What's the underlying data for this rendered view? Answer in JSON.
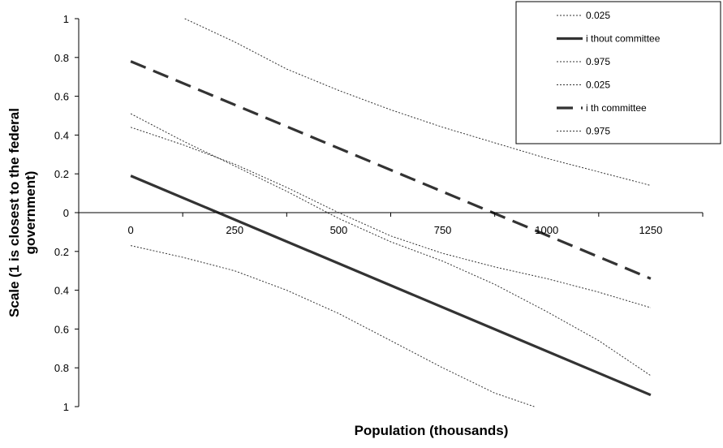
{
  "chart_data": {
    "type": "line",
    "title": "",
    "xlabel": "Population (thousands)",
    "ylabel_lines": [
      "Scale (1 is closest to the federal",
      "government)"
    ],
    "xlim": [
      -125,
      1375
    ],
    "ylim": [
      -1,
      1
    ],
    "x_ticks": [
      0,
      250,
      500,
      750,
      1000,
      1250
    ],
    "x_tick_labels": [
      "0",
      "250",
      "500",
      "750",
      "1000",
      "1250"
    ],
    "y_ticks": [
      1,
      0.8,
      0.6,
      0.4,
      0.2,
      0,
      -0.2,
      -0.4,
      -0.6,
      -0.8,
      -1
    ],
    "y_tick_labels": [
      "1",
      "0.8",
      "0.6",
      "0.4",
      "0.2",
      "0",
      "0.2",
      "0.4",
      "0.6",
      "0.8",
      "1"
    ],
    "grid": false,
    "legend_position": "top-right",
    "series": [
      {
        "name": "0.025",
        "style": "dotted",
        "color": "#333333",
        "x": [
          0,
          125,
          250,
          375,
          500,
          625,
          750,
          875,
          970
        ],
        "y": [
          -0.17,
          -0.23,
          -0.3,
          -0.4,
          -0.52,
          -0.66,
          -0.8,
          -0.93,
          -1.0
        ]
      },
      {
        "name": "i thout committee",
        "style": "solid",
        "color": "#333333",
        "x": [
          0,
          1250
        ],
        "y": [
          0.19,
          -0.94
        ]
      },
      {
        "name": "0.975",
        "style": "dotted",
        "color": "#333333",
        "x": [
          0,
          125,
          250,
          375,
          500,
          625,
          750,
          875,
          1000,
          1125,
          1250
        ],
        "y": [
          0.44,
          0.35,
          0.25,
          0.13,
          0.0,
          -0.12,
          -0.21,
          -0.28,
          -0.34,
          -0.41,
          -0.49
        ]
      },
      {
        "name": "0.025",
        "style": "dotted",
        "color": "#333333",
        "x": [
          0,
          125,
          250,
          375,
          500,
          625,
          750,
          875,
          1000,
          1125,
          1250
        ],
        "y": [
          0.51,
          0.37,
          0.24,
          0.11,
          -0.03,
          -0.15,
          -0.25,
          -0.37,
          -0.51,
          -0.66,
          -0.84
        ]
      },
      {
        "name": "i th committee",
        "style": "dashed",
        "color": "#333333",
        "x": [
          0,
          1250
        ],
        "y": [
          0.78,
          -0.34
        ]
      },
      {
        "name": "0.975",
        "style": "dotted",
        "color": "#333333",
        "x": [
          130,
          250,
          375,
          500,
          625,
          750,
          875,
          1000,
          1125,
          1250
        ],
        "y": [
          1.0,
          0.88,
          0.74,
          0.63,
          0.53,
          0.44,
          0.36,
          0.28,
          0.21,
          0.14
        ]
      }
    ]
  }
}
